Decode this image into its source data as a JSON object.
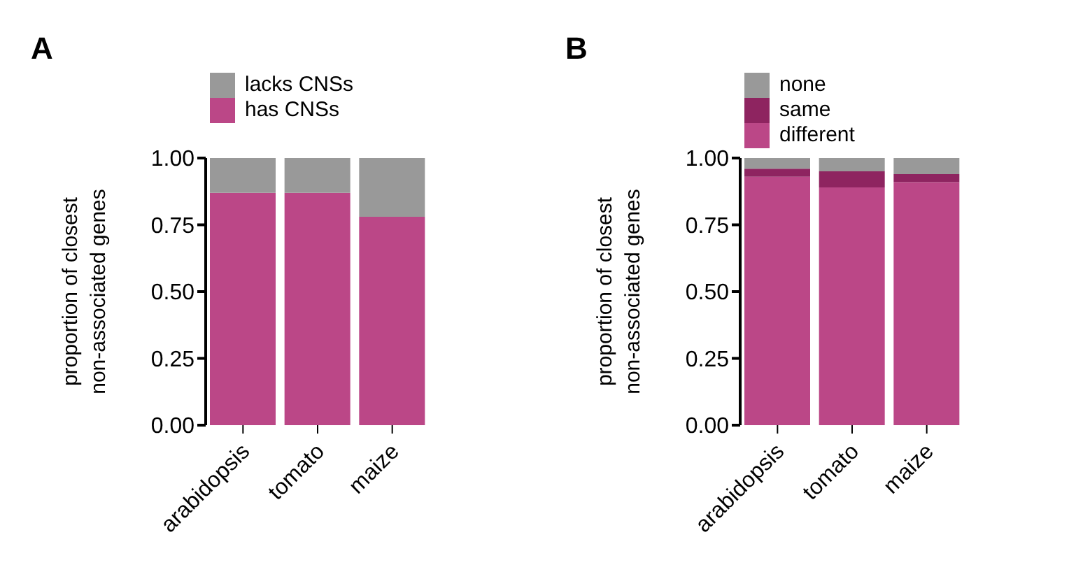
{
  "chart_data": [
    {
      "type": "bar",
      "title": "A",
      "ylabel": "proportion of closest\nnon-associated genes",
      "categories": [
        "arabidopsis",
        "tomato",
        "maize"
      ],
      "stacked": true,
      "legend": "top",
      "series": [
        {
          "name": "has CNSs",
          "color": "#bb4787",
          "values": [
            0.87,
            0.87,
            0.78
          ]
        },
        {
          "name": "lacks CNSs",
          "color": "#999999",
          "values": [
            0.13,
            0.13,
            0.22
          ]
        }
      ],
      "ylim": [
        0,
        1
      ],
      "yticks": [
        {
          "value": 0,
          "label": "0.00"
        },
        {
          "value": 0.25,
          "label": "0.25"
        },
        {
          "value": 0.5,
          "label": "0.50"
        },
        {
          "value": 0.75,
          "label": "0.75"
        },
        {
          "value": 1,
          "label": "1.00"
        }
      ]
    },
    {
      "type": "bar",
      "title": "B",
      "ylabel": "proportion of closest\nnon-associated genes",
      "categories": [
        "arabidopsis",
        "tomato",
        "maize"
      ],
      "stacked": true,
      "legend": "top",
      "series": [
        {
          "name": "different",
          "color": "#bb4787",
          "values": [
            0.93,
            0.89,
            0.91
          ]
        },
        {
          "name": "same",
          "color": "#8e2460",
          "values": [
            0.03,
            0.06,
            0.03
          ]
        },
        {
          "name": "none",
          "color": "#999999",
          "values": [
            0.04,
            0.05,
            0.06
          ]
        }
      ],
      "ylim": [
        0,
        1
      ],
      "yticks": [
        {
          "value": 0,
          "label": "0.00"
        },
        {
          "value": 0.25,
          "label": "0.25"
        },
        {
          "value": 0.5,
          "label": "0.50"
        },
        {
          "value": 0.75,
          "label": "0.75"
        },
        {
          "value": 1,
          "label": "1.00"
        }
      ]
    }
  ]
}
